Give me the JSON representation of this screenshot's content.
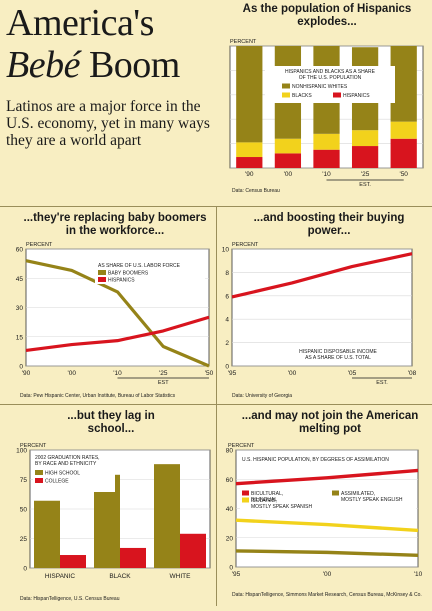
{
  "header": {
    "title_line1": "America's",
    "title_bebe": "Bebé",
    "title_boom": "Boom",
    "intro": "Latinos are a major force in the U.S. economy, yet in many ways they are a world apart"
  },
  "chart_data": [
    {
      "id": "population",
      "type": "bar",
      "title": "As the population of Hispanics explodes...",
      "ylabel": "PERCENT",
      "ylim": [
        0,
        100
      ],
      "yticks": [
        "0",
        "20",
        "40",
        "60",
        "80",
        "100"
      ],
      "legend_title": "HISPANICS AND BLACKS AS A SHARE OF THE U.S. POPULATION",
      "legend_items": [
        "NONHISPANIC WHITES",
        "BLACKS",
        "HISPANICS"
      ],
      "categories": [
        "'90",
        "'00",
        "'10",
        "'25",
        "'50"
      ],
      "series": [
        {
          "name": "HISPANICS",
          "color": "#d8141e",
          "values": [
            9,
            12,
            15,
            18,
            24
          ]
        },
        {
          "name": "BLACKS",
          "color": "#f2d21c",
          "values": [
            12,
            12,
            13,
            13,
            14
          ]
        },
        {
          "name": "NONHISPANIC WHITES",
          "color": "#958318",
          "values": [
            79,
            76,
            72,
            68,
            62
          ]
        }
      ],
      "est_label": "EST.",
      "source": "Data: Census Bureau"
    },
    {
      "id": "workforce",
      "type": "line",
      "title": "...they're replacing baby boomers in the workforce...",
      "ylabel": "PERCENT",
      "ylim": [
        0,
        60
      ],
      "yticks": [
        "0",
        "15",
        "30",
        "45",
        "60"
      ],
      "x": [
        "'90",
        "'00",
        "'10",
        "'25",
        "'50"
      ],
      "legend_title": "AS SHARE OF U.S. LABOR FORCE",
      "series": [
        {
          "name": "BABY BOOMERS",
          "color": "#958318",
          "values": [
            54,
            49,
            38,
            10,
            0
          ]
        },
        {
          "name": "HISPANICS",
          "color": "#d8141e",
          "values": [
            8,
            11,
            13,
            18,
            25
          ]
        }
      ],
      "est_label": "EST",
      "source": "Data: Pew Hispanic Center, Urban Institute, Bureau of Labor Statistics"
    },
    {
      "id": "buying_power",
      "type": "line",
      "title": "...and boosting their buying power...",
      "ylabel": "PERCENT",
      "ylim": [
        0,
        10
      ],
      "yticks": [
        "0",
        "2",
        "4",
        "6",
        "8",
        "10"
      ],
      "x": [
        "'95",
        "'00",
        "'05",
        "'08"
      ],
      "series": [
        {
          "name": "HISPANIC DISPOSABLE INCOME AS A SHARE OF U.S. TOTAL",
          "color": "#d8141e",
          "values": [
            5.9,
            7.1,
            8.5,
            9.6
          ]
        }
      ],
      "annotation": "HISPANIC DISPOSABLE INCOME AS A SHARE OF U.S. TOTAL",
      "est_label": "EST.",
      "source": "Data: University of Georgia"
    },
    {
      "id": "school",
      "type": "bar",
      "title": "...but they lag in school...",
      "ylabel": "PERCENT",
      "ylim": [
        0,
        100
      ],
      "yticks": [
        "0",
        "25",
        "50",
        "75",
        "100"
      ],
      "legend_title": "2002 GRADUATION RATES, BY RACE AND ETHNICITY",
      "categories": [
        "HISPANIC",
        "BLACK",
        "WHITE"
      ],
      "series": [
        {
          "name": "HIGH SCHOOL",
          "color": "#958318",
          "values": [
            57,
            79,
            88
          ]
        },
        {
          "name": "COLLEGE",
          "color": "#d8141e",
          "values": [
            11,
            17,
            29
          ]
        }
      ],
      "source": "Data: HispanTelligence, U.S. Census Bureau"
    },
    {
      "id": "assimilation",
      "type": "line",
      "title": "...and may not join the American melting pot",
      "ylabel": "PERCENT",
      "ylim": [
        0,
        80
      ],
      "yticks": [
        "0",
        "20",
        "40",
        "60",
        "80"
      ],
      "x": [
        "'95",
        "'00",
        "'10"
      ],
      "legend_title": "U.S. HISPANIC POPULATION, BY DEGREES OF ASSIMILATION",
      "series": [
        {
          "name": "BICULTURAL, BILINGUAL",
          "color": "#d8141e",
          "values": [
            57,
            61,
            66
          ]
        },
        {
          "name": "ISOLATED, MOSTLY SPEAK SPANISH",
          "color": "#f2d21c",
          "values": [
            32,
            29,
            25
          ]
        },
        {
          "name": "ASSIMILATED, MOSTLY SPEAK ENGLISH",
          "color": "#958318",
          "values": [
            11,
            10,
            8
          ]
        }
      ],
      "source": "Data: HispanTelligence, Simmons Market Research, Census Bureau, McKinsey & Co."
    }
  ]
}
